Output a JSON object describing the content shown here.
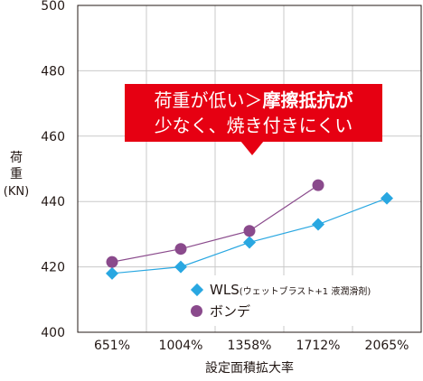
{
  "chart_data": {
    "type": "line",
    "categories": [
      "651%",
      "1004%",
      "1358%",
      "1712%",
      "2065%"
    ],
    "ylim": [
      400,
      500
    ],
    "yticks": [
      400,
      420,
      440,
      460,
      480,
      500
    ],
    "ylabel": "荷重",
    "yunit": "(KN)",
    "xlabel": "設定面積拡大率",
    "grid": true,
    "legend_position": "bottom-right",
    "series": [
      {
        "name": "WLS",
        "note": "(ウェットブラスト+1 液潤滑剤)",
        "marker": "diamond",
        "color": "#29a7e1",
        "values": [
          418,
          420,
          427.5,
          433,
          441
        ]
      },
      {
        "name": "ボンデ",
        "marker": "circle",
        "color": "#8a4a8c",
        "values": [
          421.5,
          425.5,
          431,
          445,
          null
        ]
      }
    ],
    "annotation": {
      "line1_normal": "荷重が低い＞",
      "line1_bold": "摩擦抵抗が",
      "line2": "少なく、焼き付きにくい",
      "color": "#e60012"
    }
  }
}
